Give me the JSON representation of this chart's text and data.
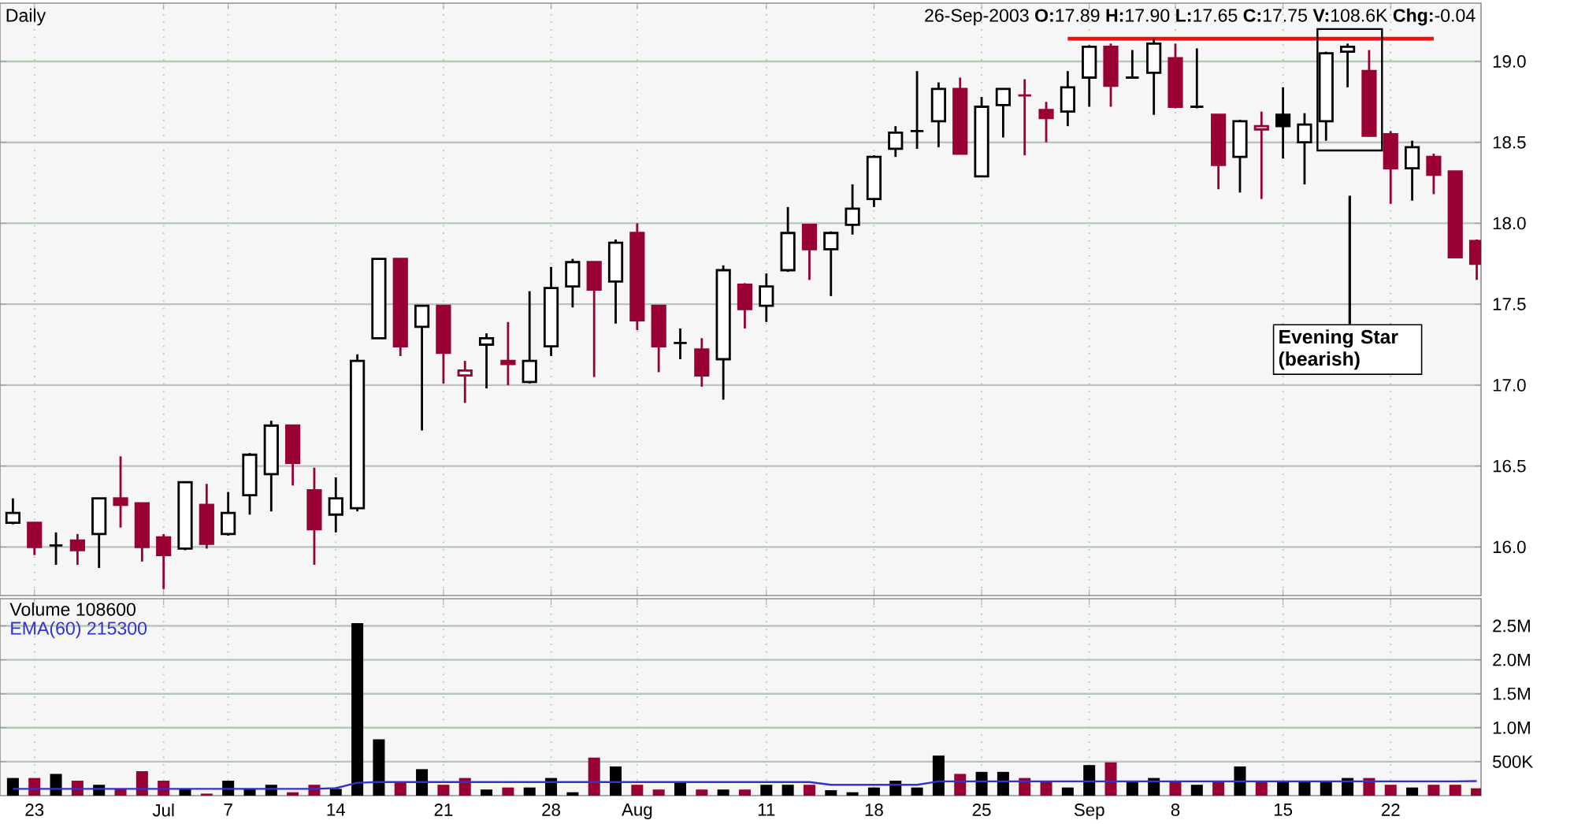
{
  "chart_data": [
    {
      "type": "candlestick",
      "title": "Daily",
      "subtitle": "26-Sep-2003 **O:**17.89 **H:**17.90 **L:**17.65 **C:**17.75 **V:**108.6K **Chg:**-0.04",
      "ohlc": [
        [
          16.15,
          16.3,
          16.14,
          16.21
        ],
        [
          16.15,
          16.15,
          15.95,
          16.0
        ],
        [
          16.01,
          16.09,
          15.89,
          16.01
        ],
        [
          16.04,
          16.08,
          15.89,
          15.98
        ],
        [
          16.08,
          16.3,
          15.87,
          16.3
        ],
        [
          16.3,
          16.56,
          16.12,
          16.26
        ],
        [
          16.27,
          16.27,
          15.91,
          16.0
        ],
        [
          16.06,
          16.08,
          15.74,
          15.95
        ],
        [
          15.99,
          16.4,
          15.98,
          16.4
        ],
        [
          16.26,
          16.39,
          15.99,
          16.02
        ],
        [
          16.08,
          16.34,
          16.07,
          16.21
        ],
        [
          16.32,
          16.58,
          16.2,
          16.57
        ],
        [
          16.45,
          16.78,
          16.22,
          16.75
        ],
        [
          16.75,
          16.75,
          16.38,
          16.52
        ],
        [
          16.35,
          16.49,
          15.89,
          16.11
        ],
        [
          16.2,
          16.43,
          16.09,
          16.3
        ],
        [
          16.24,
          17.19,
          16.22,
          17.15
        ],
        [
          17.29,
          17.78,
          17.29,
          17.78
        ],
        [
          17.78,
          17.78,
          17.18,
          17.24
        ],
        [
          17.36,
          17.49,
          16.72,
          17.49
        ],
        [
          17.49,
          17.49,
          17.01,
          17.2
        ],
        [
          17.06,
          17.15,
          16.89,
          17.09
        ],
        [
          17.25,
          17.32,
          16.98,
          17.29
        ],
        [
          17.15,
          17.39,
          17.0,
          17.13
        ],
        [
          17.02,
          17.58,
          17.01,
          17.15
        ],
        [
          17.24,
          17.73,
          17.18,
          17.6
        ],
        [
          17.61,
          17.78,
          17.48,
          17.76
        ],
        [
          17.76,
          17.76,
          17.05,
          17.59
        ],
        [
          17.64,
          17.9,
          17.38,
          17.88
        ],
        [
          17.94,
          18.0,
          17.34,
          17.4
        ],
        [
          17.49,
          17.49,
          17.08,
          17.24
        ],
        [
          17.26,
          17.35,
          17.16,
          17.26
        ],
        [
          17.22,
          17.29,
          16.99,
          17.06
        ],
        [
          17.16,
          17.74,
          16.91,
          17.71
        ],
        [
          17.62,
          17.63,
          17.35,
          17.47
        ],
        [
          17.49,
          17.69,
          17.39,
          17.61
        ],
        [
          17.71,
          18.1,
          17.7,
          17.94
        ],
        [
          17.99,
          17.99,
          17.65,
          17.84
        ],
        [
          17.84,
          17.95,
          17.55,
          17.94
        ],
        [
          17.99,
          18.24,
          17.93,
          18.09
        ],
        [
          18.15,
          18.42,
          18.1,
          18.41
        ],
        [
          18.46,
          18.6,
          18.41,
          18.56
        ],
        [
          18.57,
          18.94,
          18.46,
          18.57
        ],
        [
          18.63,
          18.87,
          18.47,
          18.83
        ],
        [
          18.83,
          18.9,
          18.43,
          18.43
        ],
        [
          18.29,
          18.78,
          18.29,
          18.72
        ],
        [
          18.73,
          18.83,
          18.53,
          18.83
        ],
        [
          18.79,
          18.89,
          18.42,
          18.79
        ],
        [
          18.7,
          18.75,
          18.5,
          18.65
        ],
        [
          18.69,
          18.94,
          18.6,
          18.84
        ],
        [
          18.9,
          19.1,
          18.72,
          19.09
        ],
        [
          19.09,
          19.11,
          18.72,
          18.85
        ],
        [
          18.9,
          19.07,
          18.9,
          18.9
        ],
        [
          18.93,
          19.14,
          18.67,
          19.11
        ],
        [
          19.02,
          19.11,
          18.71,
          18.72
        ],
        [
          18.72,
          19.08,
          18.71,
          18.72
        ],
        [
          18.67,
          18.67,
          18.21,
          18.36
        ],
        [
          18.41,
          18.64,
          18.19,
          18.63
        ],
        [
          18.58,
          18.69,
          18.15,
          18.6
        ],
        [
          18.67,
          18.84,
          18.4,
          18.6
        ],
        [
          18.5,
          18.68,
          18.24,
          18.61
        ],
        [
          18.63,
          19.06,
          18.51,
          19.05
        ],
        [
          19.06,
          19.11,
          18.84,
          19.09
        ],
        [
          18.94,
          19.07,
          18.54,
          18.54
        ],
        [
          18.55,
          18.57,
          18.12,
          18.34
        ],
        [
          18.34,
          18.51,
          18.14,
          18.47
        ],
        [
          18.41,
          18.43,
          18.18,
          18.3
        ],
        [
          18.32,
          18.32,
          17.79,
          17.79
        ],
        [
          17.89,
          17.9,
          17.65,
          17.75
        ]
      ],
      "colors": [
        "#000000",
        "#990033",
        "#000000",
        "#990033",
        "#000000",
        "#990033",
        "#990033",
        "#990033",
        "#000000",
        "#990033",
        "#000000",
        "#000000",
        "#000000",
        "#990033",
        "#990033",
        "#000000",
        "#000000",
        "#000000",
        "#990033",
        "#000000",
        "#990033",
        "#990033",
        "#000000",
        "#990033",
        "#000000",
        "#000000",
        "#000000",
        "#990033",
        "#000000",
        "#990033",
        "#990033",
        "#000000",
        "#990033",
        "#000000",
        "#990033",
        "#000000",
        "#000000",
        "#990033",
        "#000000",
        "#000000",
        "#000000",
        "#000000",
        "#000000",
        "#000000",
        "#990033",
        "#000000",
        "#000000",
        "#990033",
        "#990033",
        "#000000",
        "#000000",
        "#990033",
        "#000000",
        "#000000",
        "#990033",
        "#000000",
        "#990033",
        "#000000",
        "#990033",
        "#000000",
        "#000000",
        "#000000",
        "#000000",
        "#990033",
        "#990033",
        "#000000",
        "#990033",
        "#990033",
        "#990033"
      ],
      "series": [
        {
          "type": "line",
          "color": "#ee1111",
          "values": [
            null,
            null,
            null,
            null,
            null,
            null,
            null,
            null,
            null,
            null,
            null,
            null,
            null,
            null,
            null,
            null,
            null,
            null,
            null,
            null,
            null,
            null,
            null,
            null,
            null,
            null,
            null,
            null,
            null,
            null,
            null,
            null,
            null,
            null,
            null,
            null,
            null,
            null,
            null,
            null,
            null,
            null,
            null,
            null,
            null,
            null,
            null,
            null,
            null,
            19.14,
            19.14,
            19.14,
            19.14,
            19.14,
            19.14,
            19.14,
            19.14,
            19.14,
            19.14,
            19.14,
            19.14,
            19.14,
            19.14,
            19.14,
            19.14,
            19.14,
            19.14,
            null,
            null
          ]
        }
      ],
      "ylim": [
        15.7,
        19.36
      ],
      "yticks": [
        {
          "value": 16,
          "label": "16.0"
        },
        {
          "value": 16.5,
          "label": "16.5"
        },
        {
          "value": 17,
          "label": "17.0"
        },
        {
          "value": 17.5,
          "label": "17.5"
        },
        {
          "value": 18,
          "label": "18.0"
        },
        {
          "value": 18.5,
          "label": "18.5"
        },
        {
          "value": 19,
          "label": "19.0"
        }
      ],
      "grid": true,
      "annotations": [
        "Evening Star (bearish)"
      ]
    },
    {
      "type": "bar",
      "categories": [
        null,
        "23",
        null,
        null,
        null,
        null,
        null,
        "Jul",
        null,
        null,
        "7",
        null,
        null,
        null,
        null,
        "14",
        null,
        null,
        null,
        null,
        "21",
        null,
        null,
        null,
        null,
        "28",
        null,
        null,
        null,
        "Aug",
        null,
        null,
        null,
        null,
        null,
        "11",
        null,
        null,
        null,
        null,
        "18",
        null,
        null,
        null,
        null,
        "25",
        null,
        null,
        null,
        null,
        "Sep",
        null,
        null,
        null,
        "8",
        null,
        null,
        null,
        null,
        "15",
        null,
        null,
        null,
        null,
        "22",
        null,
        null,
        null,
        null
      ],
      "series": [
        {
          "name": "Volume 108600",
          "color": "#000000",
          "colors": [
            "#000000",
            "#990033",
            "#000000",
            "#990033",
            "#000000",
            "#990033",
            "#990033",
            "#990033",
            "#000000",
            "#990033",
            "#000000",
            "#000000",
            "#000000",
            "#990033",
            "#990033",
            "#000000",
            "#000000",
            "#000000",
            "#990033",
            "#000000",
            "#990033",
            "#990033",
            "#000000",
            "#990033",
            "#000000",
            "#000000",
            "#000000",
            "#990033",
            "#000000",
            "#990033",
            "#990033",
            "#000000",
            "#990033",
            "#000000",
            "#990033",
            "#000000",
            "#000000",
            "#990033",
            "#000000",
            "#000000",
            "#000000",
            "#000000",
            "#000000",
            "#000000",
            "#990033",
            "#000000",
            "#000000",
            "#990033",
            "#990033",
            "#000000",
            "#000000",
            "#990033",
            "#000000",
            "#000000",
            "#990033",
            "#000000",
            "#990033",
            "#000000",
            "#990033",
            "#000000",
            "#000000",
            "#000000",
            "#000000",
            "#990033",
            "#990033",
            "#000000",
            "#990033",
            "#990033",
            "#990033"
          ],
          "values": [
            260000,
            260000,
            320000,
            220000,
            160000,
            100000,
            360000,
            220000,
            100000,
            30000,
            220000,
            100000,
            160000,
            50000,
            160000,
            100000,
            2540000,
            830000,
            200000,
            390000,
            160000,
            260000,
            90000,
            120000,
            120000,
            260000,
            50000,
            560000,
            430000,
            160000,
            90000,
            200000,
            90000,
            90000,
            90000,
            160000,
            160000,
            160000,
            80000,
            50000,
            120000,
            220000,
            120000,
            590000,
            320000,
            350000,
            350000,
            260000,
            200000,
            120000,
            450000,
            490000,
            200000,
            260000,
            200000,
            160000,
            200000,
            430000,
            200000,
            200000,
            200000,
            200000,
            260000,
            260000,
            160000,
            120000,
            160000,
            160000,
            108600
          ]
        },
        {
          "type": "line",
          "name": "EMA(60) 215300",
          "color": "#3333cc",
          "values": [
            100000,
            100000,
            100000,
            100000,
            100000,
            100000,
            100000,
            100000,
            100000,
            100000,
            100000,
            100000,
            100000,
            100000,
            100000,
            110000,
            190000,
            200000,
            200000,
            200000,
            200000,
            200000,
            200000,
            200000,
            200000,
            200000,
            200000,
            200000,
            200000,
            200000,
            200000,
            200000,
            200000,
            200000,
            200000,
            200000,
            200000,
            200000,
            160000,
            160000,
            160000,
            160000,
            160000,
            210000,
            210000,
            210000,
            210000,
            210000,
            210000,
            210000,
            210000,
            210000,
            210000,
            210000,
            210000,
            210000,
            210000,
            210000,
            210000,
            210000,
            210000,
            210000,
            210000,
            210000,
            210000,
            210000,
            210000,
            210000,
            215300
          ]
        }
      ],
      "ylim": [
        0,
        2900000
      ],
      "yticks": [
        {
          "value": 500000,
          "label": "500K"
        },
        {
          "value": 1000000,
          "label": "1.0M"
        },
        {
          "value": 1500000,
          "label": "1.5M"
        },
        {
          "value": 2000000,
          "label": "2.0M"
        },
        {
          "value": 2500000,
          "label": "2.5M"
        }
      ],
      "grid": true,
      "legend": "top left"
    }
  ]
}
